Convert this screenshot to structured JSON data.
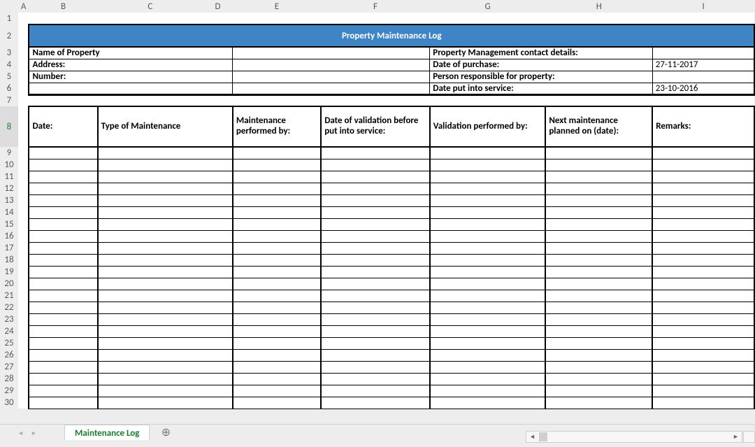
{
  "columns": [
    {
      "letter": "A",
      "width": 7,
      "selected": true
    },
    {
      "letter": "B",
      "width": 99
    },
    {
      "letter": "C",
      "width": 152
    },
    {
      "letter": "D",
      "width": 43
    },
    {
      "letter": "E",
      "width": 127
    },
    {
      "letter": "F",
      "width": 157
    },
    {
      "letter": "G",
      "width": 167
    },
    {
      "letter": "H",
      "width": 154
    },
    {
      "letter": "I",
      "width": 147
    }
  ],
  "row1_height": 17,
  "banner_title": "Property Maintenance Log",
  "info_rows": [
    {
      "row": 3,
      "left_label": "Name of Property",
      "right_label": "Property Management contact details:",
      "right_value": ""
    },
    {
      "row": 4,
      "left_label": "Address:",
      "right_label": "Date of purchase:",
      "right_value": "27-11-2017"
    },
    {
      "row": 5,
      "left_label": "Number:",
      "right_label": "Person responsible for property:",
      "right_value": ""
    },
    {
      "row": 6,
      "left_label": "",
      "right_label": "Date put into service:",
      "right_value": "23-10-2016"
    }
  ],
  "log_headers": [
    "Date:",
    "Type of Maintenance",
    "Maintenance performed by:",
    "Date of validation before put into service:",
    "Validation performed by:",
    "Next maintenance planned on (date):",
    "Remarks:"
  ],
  "log_row_start": 9,
  "log_row_end": 30,
  "sheet_tab": "Maintenance Log"
}
